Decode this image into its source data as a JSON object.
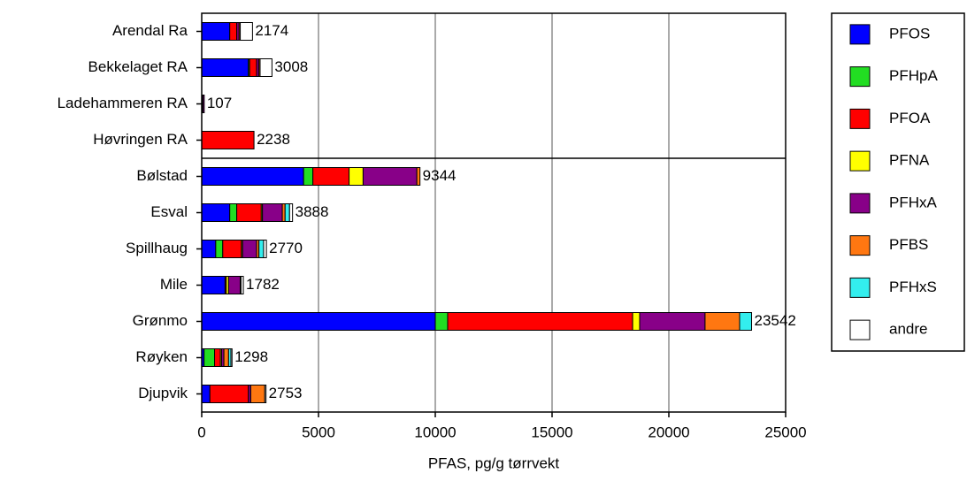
{
  "chart_data": {
    "type": "stacked_barh",
    "xlabel": "PFAS, pg/g tørrvekt",
    "categories": [
      "Arendal Ra",
      "Bekkelaget RA",
      "Ladehammeren RA",
      "Høvringen RA",
      "Bølstad",
      "Esval",
      "Spillhaug",
      "Mile",
      "Grønmo",
      "Røyken",
      "Djupvik"
    ],
    "series": [
      {
        "name": "PFOS",
        "color": "#0000ff",
        "values": [
          1200,
          2000,
          30,
          0,
          4360,
          1200,
          600,
          1000,
          10000,
          100,
          350
        ]
      },
      {
        "name": "PFHpA",
        "color": "#22dd22",
        "values": [
          0,
          50,
          0,
          0,
          400,
          300,
          300,
          0,
          530,
          450,
          0
        ]
      },
      {
        "name": "PFOA",
        "color": "#ff0000",
        "values": [
          300,
          300,
          20,
          2238,
          1550,
          1050,
          800,
          50,
          7920,
          250,
          1650
        ]
      },
      {
        "name": "PFNA",
        "color": "#ffff00",
        "values": [
          0,
          0,
          0,
          0,
          600,
          50,
          50,
          100,
          300,
          50,
          0
        ]
      },
      {
        "name": "PFHxA",
        "color": "#880088",
        "values": [
          100,
          100,
          57,
          0,
          2300,
          850,
          600,
          500,
          2800,
          100,
          100
        ]
      },
      {
        "name": "PFBS",
        "color": "#ff7711",
        "values": [
          50,
          50,
          0,
          0,
          134,
          120,
          100,
          32,
          1480,
          200,
          600
        ]
      },
      {
        "name": "PFHxS",
        "color": "#33eeee",
        "values": [
          0,
          0,
          0,
          0,
          0,
          190,
          200,
          0,
          512,
          100,
          0
        ]
      },
      {
        "name": "andre",
        "color": "#ffffff",
        "values": [
          524,
          508,
          0,
          0,
          0,
          128,
          120,
          100,
          0,
          48,
          53
        ]
      }
    ],
    "totals": [
      2174,
      3008,
      107,
      2238,
      9344,
      3888,
      2770,
      1782,
      23542,
      1298,
      2753
    ],
    "xlim": [
      0,
      25000
    ],
    "xticks": [
      0,
      5000,
      10000,
      15000,
      20000,
      25000
    ],
    "grid": true,
    "legend": "right"
  }
}
